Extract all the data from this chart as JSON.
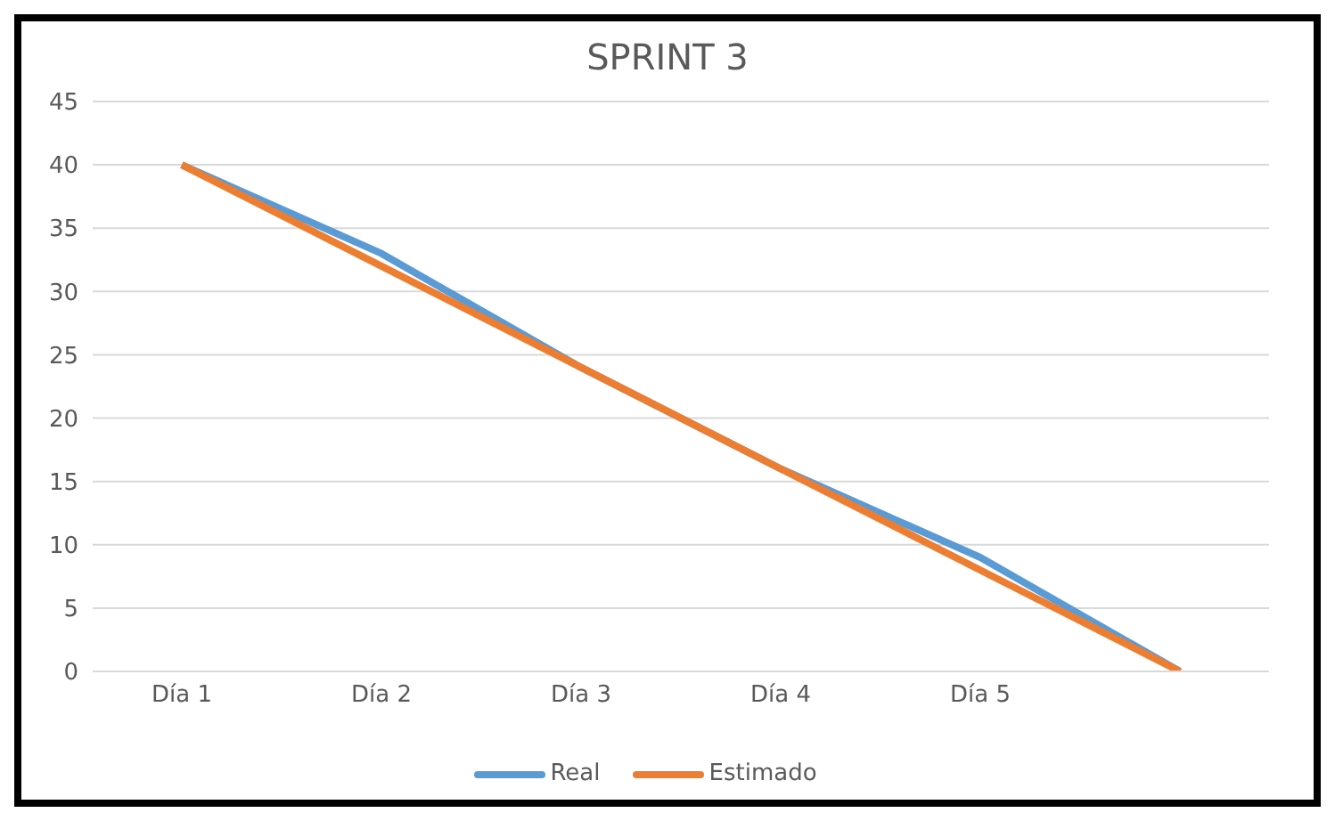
{
  "chart_data": {
    "type": "line",
    "title": "SPRINT 3",
    "categories": [
      "Día 1",
      "Día 2",
      "Día 3",
      "Día 4",
      "Día 5",
      null
    ],
    "series": [
      {
        "name": "Real",
        "color": "#5b9bd5",
        "values": [
          40,
          33,
          24,
          16,
          9,
          0
        ]
      },
      {
        "name": "Estimado",
        "color": "#ed7d31",
        "values": [
          40,
          32,
          24,
          16,
          8,
          0
        ]
      }
    ],
    "ylim": [
      0,
      45
    ],
    "yticks": [
      0,
      5,
      10,
      15,
      20,
      25,
      30,
      35,
      40,
      45
    ],
    "grid": "y",
    "legend": "bottom",
    "marker": "none",
    "line_style": "solid"
  }
}
